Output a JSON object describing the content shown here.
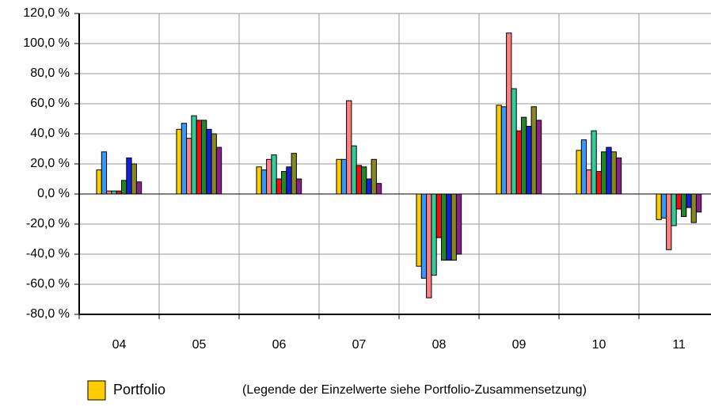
{
  "chart_data": {
    "type": "bar",
    "categories": [
      "04",
      "05",
      "06",
      "07",
      "08",
      "09",
      "10",
      "11"
    ],
    "series": [
      {
        "name": "Portfolio",
        "color": "#ffcc00",
        "values": [
          16,
          43,
          18,
          23,
          -48,
          59,
          29,
          -17
        ]
      },
      {
        "color": "#3399ff",
        "values": [
          28,
          47,
          16,
          23,
          -56,
          58,
          36,
          -16
        ]
      },
      {
        "color": "#ff8080",
        "values": [
          2,
          37,
          23,
          62,
          -69,
          107,
          16,
          -37
        ]
      },
      {
        "color": "#33cc99",
        "values": [
          2,
          52,
          26,
          32,
          -54,
          70,
          42,
          -21
        ]
      },
      {
        "color": "#ee1111",
        "values": [
          2,
          49,
          10,
          19,
          -29,
          42,
          15,
          -10
        ]
      },
      {
        "color": "#228822",
        "values": [
          9,
          49,
          15,
          18,
          -44,
          51,
          28,
          -15
        ]
      },
      {
        "color": "#1122dd",
        "values": [
          24,
          43,
          18,
          10,
          -44,
          45,
          31,
          -9
        ]
      },
      {
        "color": "#888822",
        "values": [
          20,
          40,
          27,
          23,
          -44,
          58,
          28,
          -19
        ]
      },
      {
        "color": "#882288",
        "values": [
          8,
          31,
          10,
          7,
          -40,
          49,
          24,
          -12
        ]
      }
    ],
    "ylim": [
      -80,
      120
    ],
    "yticks": [
      {
        "value": -80,
        "label": "-80,0 %"
      },
      {
        "value": -60,
        "label": "-60,0 %"
      },
      {
        "value": -40,
        "label": "-40,0 %"
      },
      {
        "value": -20,
        "label": "-20,0 %"
      },
      {
        "value": 0,
        "label": "0,0 %"
      },
      {
        "value": 20,
        "label": "20,0 %"
      },
      {
        "value": 40,
        "label": "40,0 %"
      },
      {
        "value": 60,
        "label": "60,0 %"
      },
      {
        "value": 80,
        "label": "80,0 %"
      },
      {
        "value": 100,
        "label": "100,0 %"
      },
      {
        "value": 120,
        "label": "120,0 %"
      }
    ],
    "grid": true,
    "note": "(Legende der Einzelwerte siehe Portfolio-Zusammensetzung)"
  }
}
